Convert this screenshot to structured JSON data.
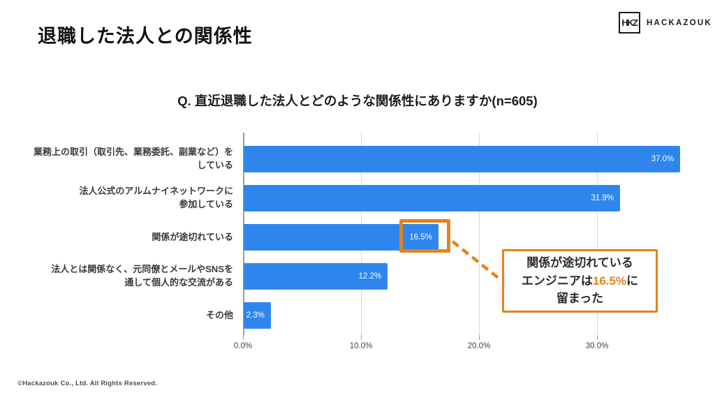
{
  "slide": {
    "title": "退職した法人との関係性",
    "footer": "©Hackazouk Co., Ltd. All Rights Reserved."
  },
  "logo": {
    "monogram": "HKZ",
    "brand": "HACKAZOUK"
  },
  "chart_data": {
    "type": "bar",
    "orientation": "horizontal",
    "title": "Q. 直近退職した法人とどのような関係性にありますか(n=605)",
    "categories": [
      "業務上の取引（取引先、業務委託、副業など）を\nしている",
      "法人公式のアルムナイネットワークに\n参加している",
      "関係が途切れている",
      "法人とは関係なく、元同僚とメールやSNSを\n通して個人的な交流がある",
      "その他"
    ],
    "values": [
      37.0,
      31.9,
      16.5,
      12.2,
      2.3
    ],
    "value_labels": [
      "37.0%",
      "31.9%",
      "16.5%",
      "12.2%",
      "2.3%"
    ],
    "x_ticks": [
      "0.0%",
      "10.0%",
      "20.0%",
      "30.0%"
    ],
    "xlim": [
      0,
      40
    ],
    "grid": true,
    "legend": false,
    "bar_color": "#2e86ec",
    "highlight_color": "#e2831d",
    "highlighted_index": 2
  },
  "annotation": {
    "line1": "関係が途切れている",
    "line2_pre": "エンジニアは",
    "line2_highlight": "16.5%",
    "line2_post": "に",
    "line3": "留まった"
  }
}
